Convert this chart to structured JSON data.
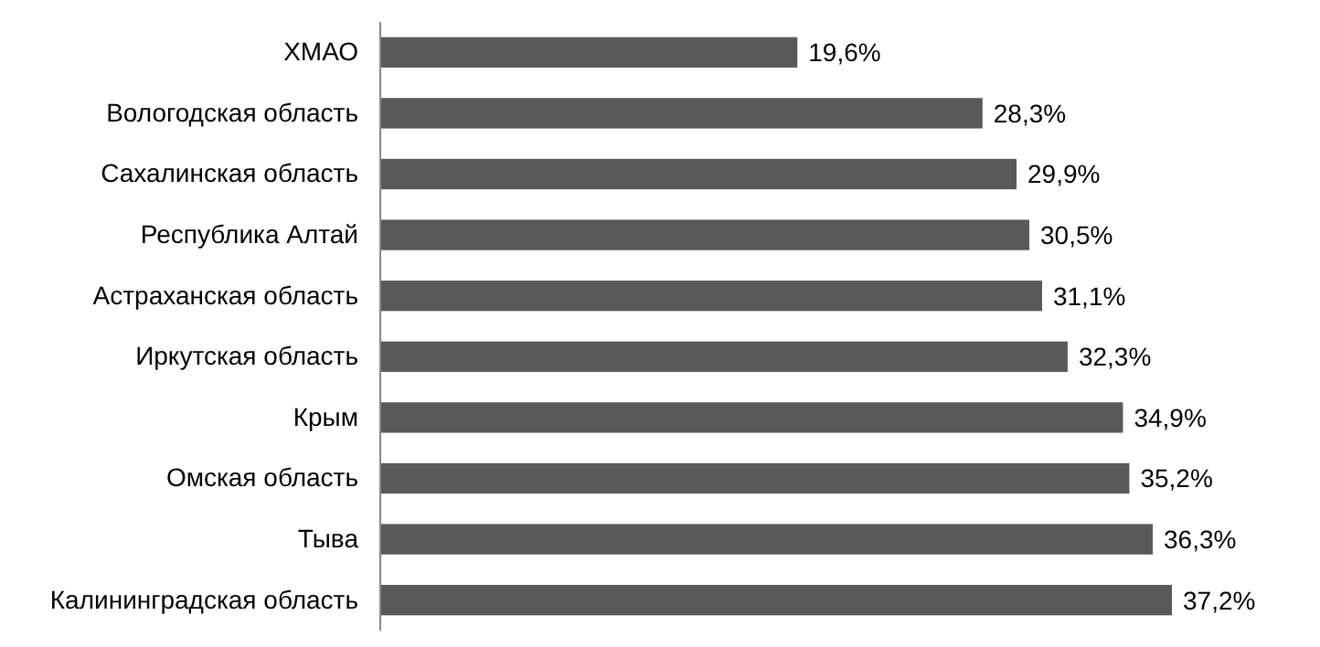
{
  "chart_data": {
    "type": "bar",
    "orientation": "horizontal",
    "categories": [
      "ХМАО",
      "Вологодская область",
      "Сахалинская область",
      "Республика Алтай",
      "Астраханская область",
      "Иркутская область",
      "Крым",
      "Омская область",
      "Тыва",
      "Калининградская область"
    ],
    "values": [
      19.6,
      28.3,
      29.9,
      30.5,
      31.1,
      32.3,
      34.9,
      35.2,
      36.3,
      37.2
    ],
    "value_labels": [
      "19,6%",
      "28,3%",
      "29,9%",
      "30,5%",
      "31,1%",
      "32,3%",
      "34,9%",
      "35,2%",
      "36,3%",
      "37,2%"
    ],
    "color": "#595959",
    "tick_labels": "y"
  }
}
